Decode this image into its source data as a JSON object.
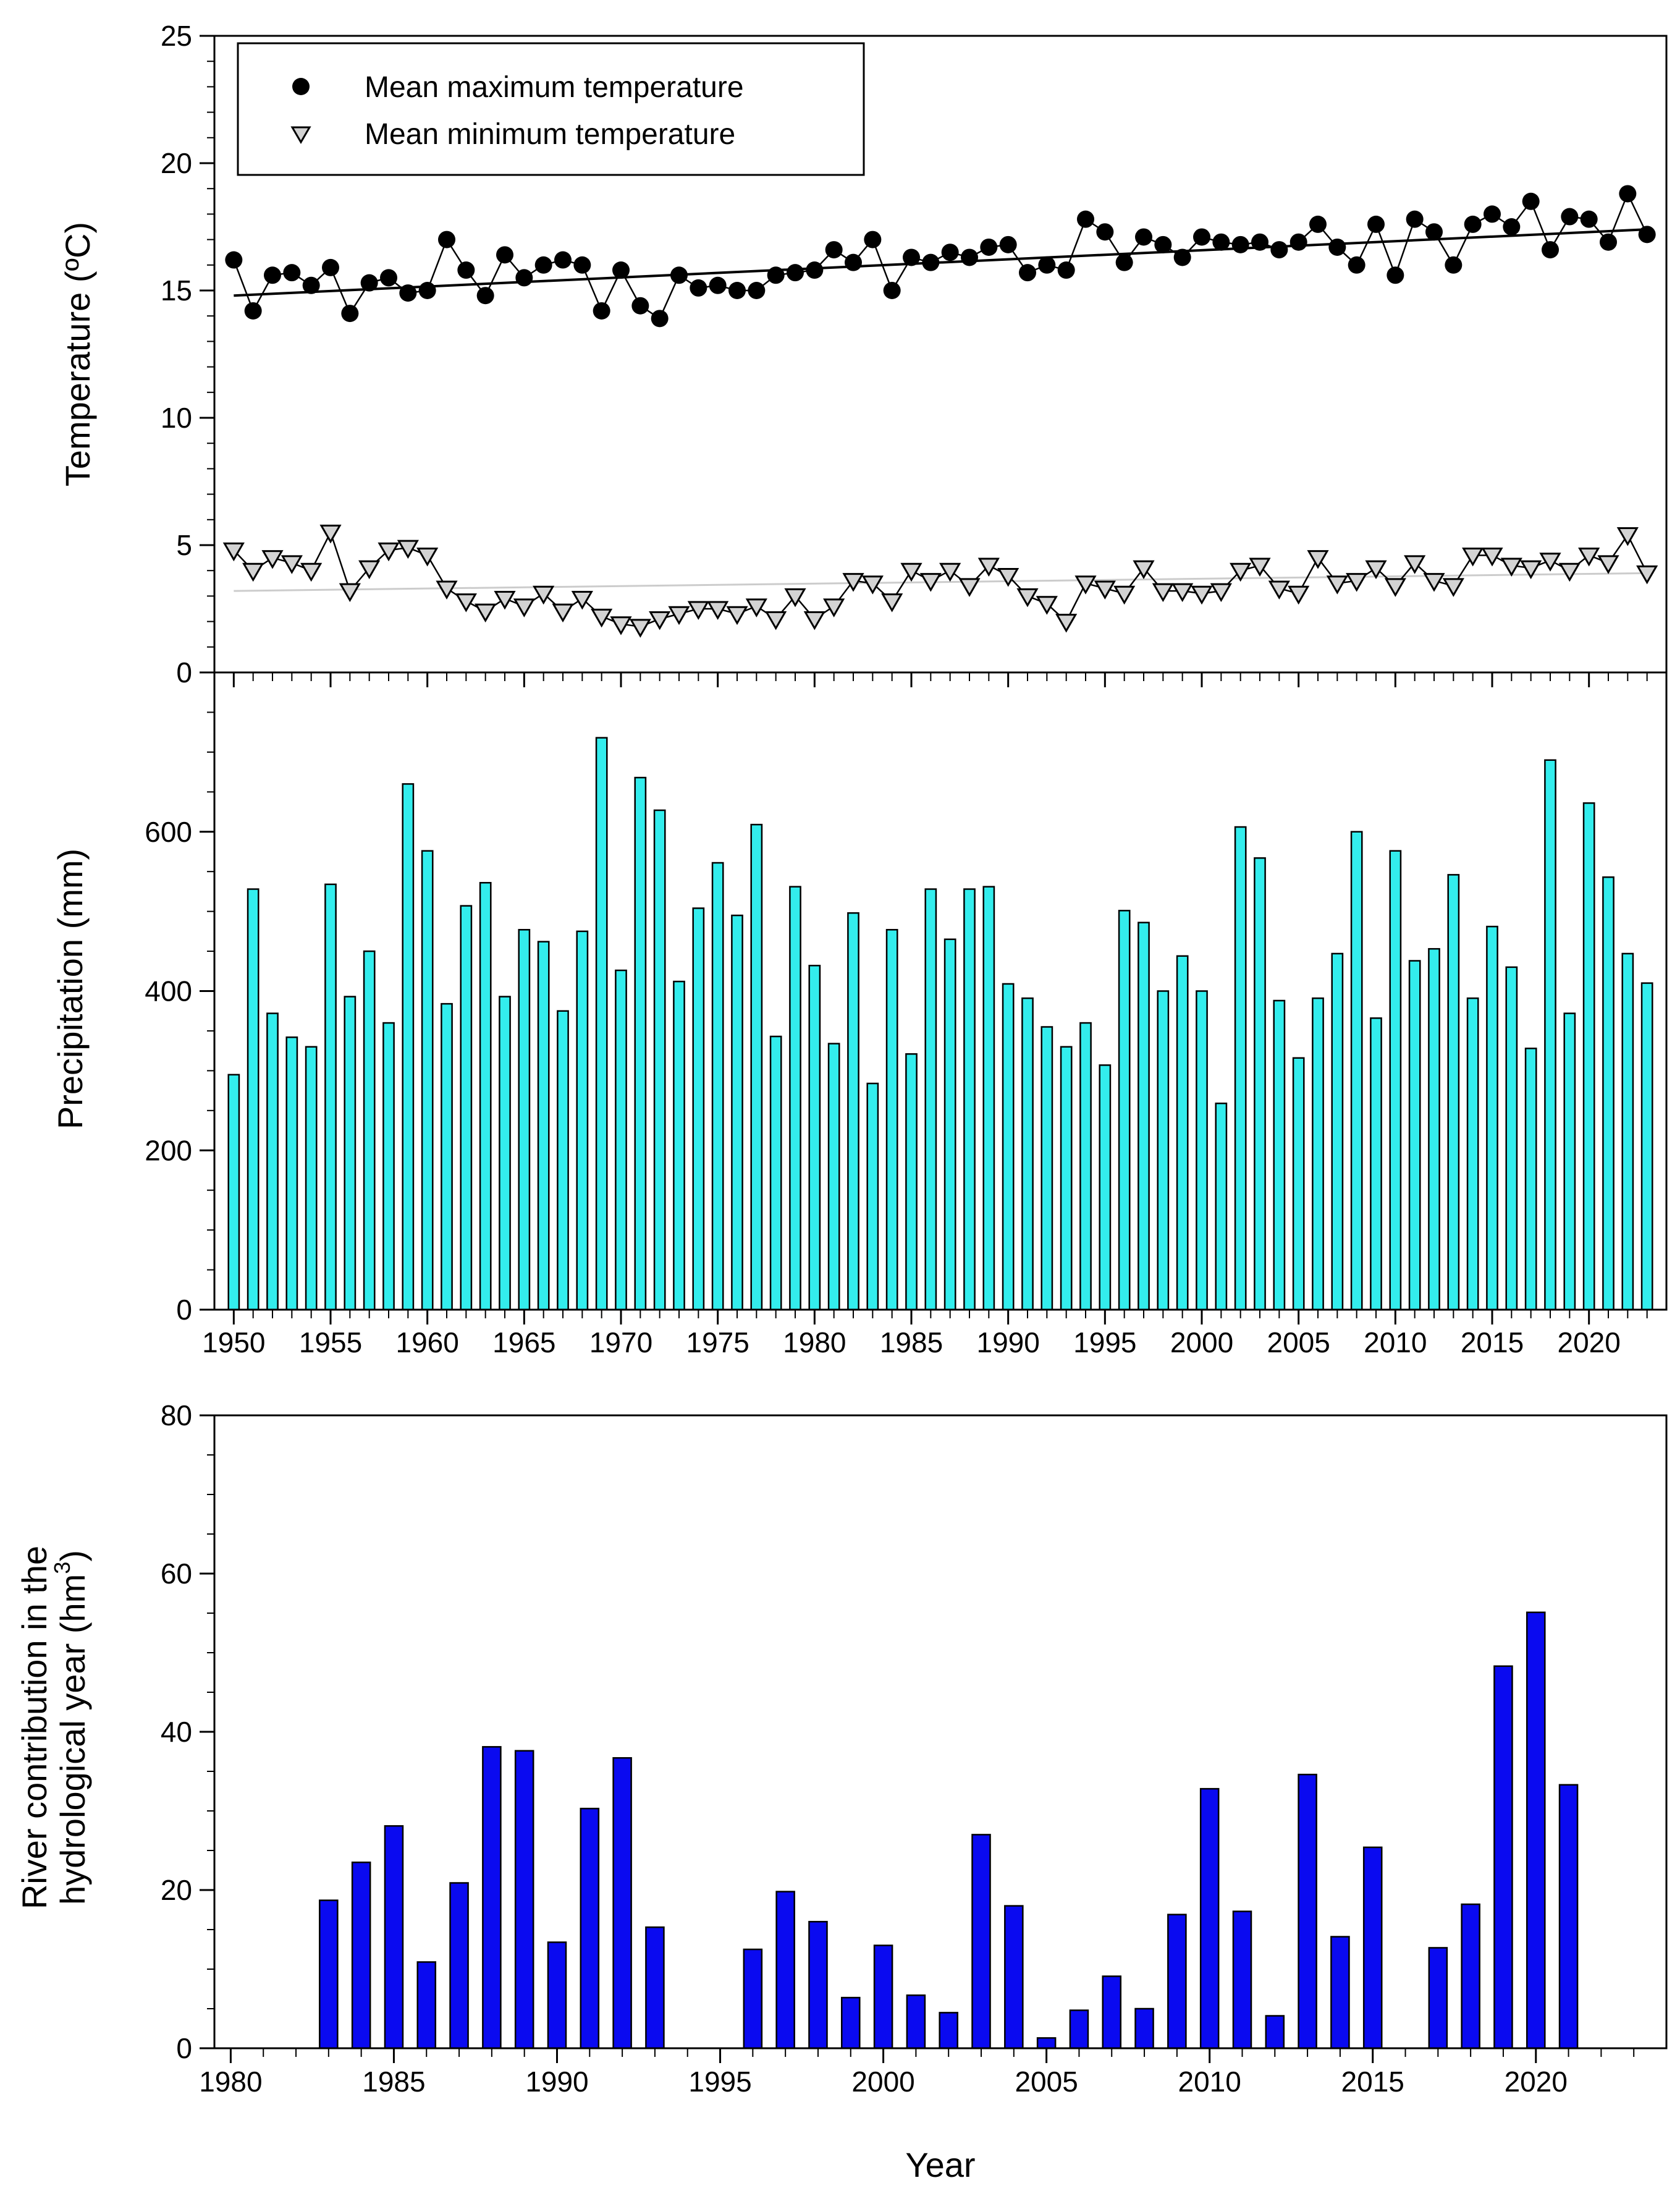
{
  "chart_data": [
    {
      "type": "line",
      "title": "",
      "xlabel": "",
      "ylabel": "Temperature (ºC)",
      "x": [
        1950,
        1951,
        1952,
        1953,
        1954,
        1955,
        1956,
        1957,
        1958,
        1959,
        1960,
        1961,
        1962,
        1963,
        1964,
        1965,
        1966,
        1967,
        1968,
        1969,
        1970,
        1971,
        1972,
        1973,
        1974,
        1975,
        1976,
        1977,
        1978,
        1979,
        1980,
        1981,
        1982,
        1983,
        1984,
        1985,
        1986,
        1987,
        1988,
        1989,
        1990,
        1991,
        1992,
        1993,
        1994,
        1995,
        1996,
        1997,
        1998,
        1999,
        2000,
        2001,
        2002,
        2003,
        2004,
        2005,
        2006,
        2007,
        2008,
        2009,
        2010,
        2011,
        2012,
        2013,
        2014,
        2015,
        2016,
        2017,
        2018,
        2019,
        2020,
        2021,
        2022,
        2023
      ],
      "xlim": [
        1949,
        2024
      ],
      "ylim": [
        0,
        25
      ],
      "yticks": [
        0,
        5,
        10,
        15,
        20,
        25
      ],
      "legend_position": "top-left",
      "series": [
        {
          "name": "Mean maximum temperature",
          "marker": "filled-circle",
          "color": "#000000",
          "values": [
            16.2,
            14.2,
            15.6,
            15.7,
            15.2,
            15.9,
            14.1,
            15.3,
            15.5,
            14.9,
            15.0,
            17.0,
            15.8,
            14.8,
            16.4,
            15.5,
            16.0,
            16.2,
            16.0,
            14.2,
            15.8,
            14.4,
            13.9,
            15.6,
            15.1,
            15.2,
            15.0,
            15.0,
            15.6,
            15.7,
            15.8,
            16.6,
            16.1,
            17.0,
            15.0,
            16.3,
            16.1,
            16.5,
            16.3,
            16.7,
            16.8,
            15.7,
            16.0,
            15.8,
            17.8,
            17.3,
            16.1,
            17.1,
            16.8,
            16.3,
            17.1,
            16.9,
            16.8,
            16.9,
            16.6,
            16.9,
            17.6,
            16.7,
            16.0,
            17.6,
            15.6,
            17.8,
            17.3,
            16.0,
            17.6,
            18.0,
            17.5,
            18.5,
            16.6,
            17.9,
            17.8,
            16.9,
            18.8,
            17.2
          ],
          "trend": [
            14.8,
            17.4
          ],
          "trend_color": "#000000"
        },
        {
          "name": "Mean minimum temperature",
          "marker": "open-triangle-down",
          "color": "#d3d3d3",
          "values": [
            4.8,
            4.0,
            4.5,
            4.3,
            4.0,
            5.5,
            3.2,
            4.1,
            4.8,
            4.9,
            4.6,
            3.3,
            2.8,
            2.4,
            2.9,
            2.6,
            3.1,
            2.4,
            2.9,
            2.2,
            1.9,
            1.8,
            2.1,
            2.3,
            2.5,
            2.5,
            2.3,
            2.6,
            2.1,
            3.0,
            2.1,
            2.6,
            3.6,
            3.5,
            2.8,
            4.0,
            3.6,
            4.0,
            3.4,
            4.2,
            3.8,
            3.0,
            2.7,
            2.0,
            3.5,
            3.3,
            3.1,
            4.1,
            3.2,
            3.2,
            3.1,
            3.2,
            4.0,
            4.2,
            3.3,
            3.1,
            4.5,
            3.5,
            3.6,
            4.1,
            3.4,
            4.3,
            3.6,
            3.4,
            4.6,
            4.6,
            4.2,
            4.1,
            4.4,
            4.0,
            4.6,
            4.3,
            5.4,
            3.9
          ],
          "trend": [
            3.2,
            3.9
          ],
          "trend_color": "#cccccc"
        }
      ]
    },
    {
      "type": "bar",
      "title": "",
      "xlabel": "",
      "ylabel": "Precipitation (mm)",
      "x": [
        1950,
        1951,
        1952,
        1953,
        1954,
        1955,
        1956,
        1957,
        1958,
        1959,
        1960,
        1961,
        1962,
        1963,
        1964,
        1965,
        1966,
        1967,
        1968,
        1969,
        1970,
        1971,
        1972,
        1973,
        1974,
        1975,
        1976,
        1977,
        1978,
        1979,
        1980,
        1981,
        1982,
        1983,
        1984,
        1985,
        1986,
        1987,
        1988,
        1989,
        1990,
        1991,
        1992,
        1993,
        1994,
        1995,
        1996,
        1997,
        1998,
        1999,
        2000,
        2001,
        2002,
        2003,
        2004,
        2005,
        2006,
        2007,
        2008,
        2009,
        2010,
        2011,
        2012,
        2013,
        2014,
        2015,
        2016,
        2017,
        2018,
        2019,
        2020,
        2021,
        2022,
        2023
      ],
      "values": [
        295,
        528,
        372,
        342,
        330,
        534,
        393,
        450,
        360,
        660,
        576,
        384,
        507,
        536,
        393,
        477,
        462,
        375,
        475,
        718,
        426,
        668,
        627,
        412,
        504,
        561,
        495,
        609,
        343,
        531,
        432,
        334,
        498,
        284,
        477,
        321,
        528,
        465,
        528,
        531,
        409,
        391,
        355,
        330,
        360,
        307,
        501,
        486,
        400,
        444,
        400,
        259,
        606,
        567,
        388,
        316,
        391,
        447,
        600,
        366,
        576,
        438,
        453,
        546,
        391,
        481,
        430,
        328,
        690,
        372,
        636,
        543,
        447,
        410
      ],
      "xlim": [
        1949,
        2024
      ],
      "ylim": [
        0,
        800
      ],
      "yticks": [
        0,
        200,
        400,
        600
      ],
      "xticks": [
        1950,
        1955,
        1960,
        1965,
        1970,
        1975,
        1980,
        1985,
        1990,
        1995,
        2000,
        2005,
        2010,
        2015,
        2020
      ],
      "bar_color": "#33eded"
    },
    {
      "type": "bar",
      "title": "",
      "xlabel": "Year",
      "ylabel_line1": "River contribution in the",
      "ylabel_line2": "hydrological year (hm",
      "ylabel_sup": "3",
      "ylabel_close": ")",
      "x": [
        1983,
        1984,
        1985,
        1986,
        1987,
        1988,
        1989,
        1990,
        1991,
        1992,
        1993,
        1996,
        1997,
        1998,
        1999,
        2000,
        2001,
        2002,
        2003,
        2004,
        2005,
        2006,
        2007,
        2008,
        2009,
        2010,
        2011,
        2012,
        2013,
        2014,
        2015,
        2017,
        2018,
        2019,
        2020,
        2021
      ],
      "values": [
        18.7,
        23.5,
        28.1,
        10.9,
        20.9,
        38.1,
        37.6,
        13.4,
        30.3,
        36.7,
        15.3,
        12.5,
        19.8,
        16.0,
        6.4,
        13.0,
        6.7,
        4.5,
        27.0,
        18.0,
        1.3,
        4.8,
        9.1,
        5.0,
        16.9,
        32.8,
        17.3,
        4.1,
        34.6,
        14.1,
        25.4,
        12.7,
        18.2,
        48.3,
        55.1,
        33.3
      ],
      "xlim": [
        1979.5,
        2024
      ],
      "ylim": [
        0,
        80
      ],
      "yticks": [
        0,
        20,
        40,
        60,
        80
      ],
      "xticks": [
        1980,
        1985,
        1990,
        1995,
        2000,
        2005,
        2010,
        2015,
        2020
      ],
      "bar_color": "#0a0af0"
    }
  ]
}
